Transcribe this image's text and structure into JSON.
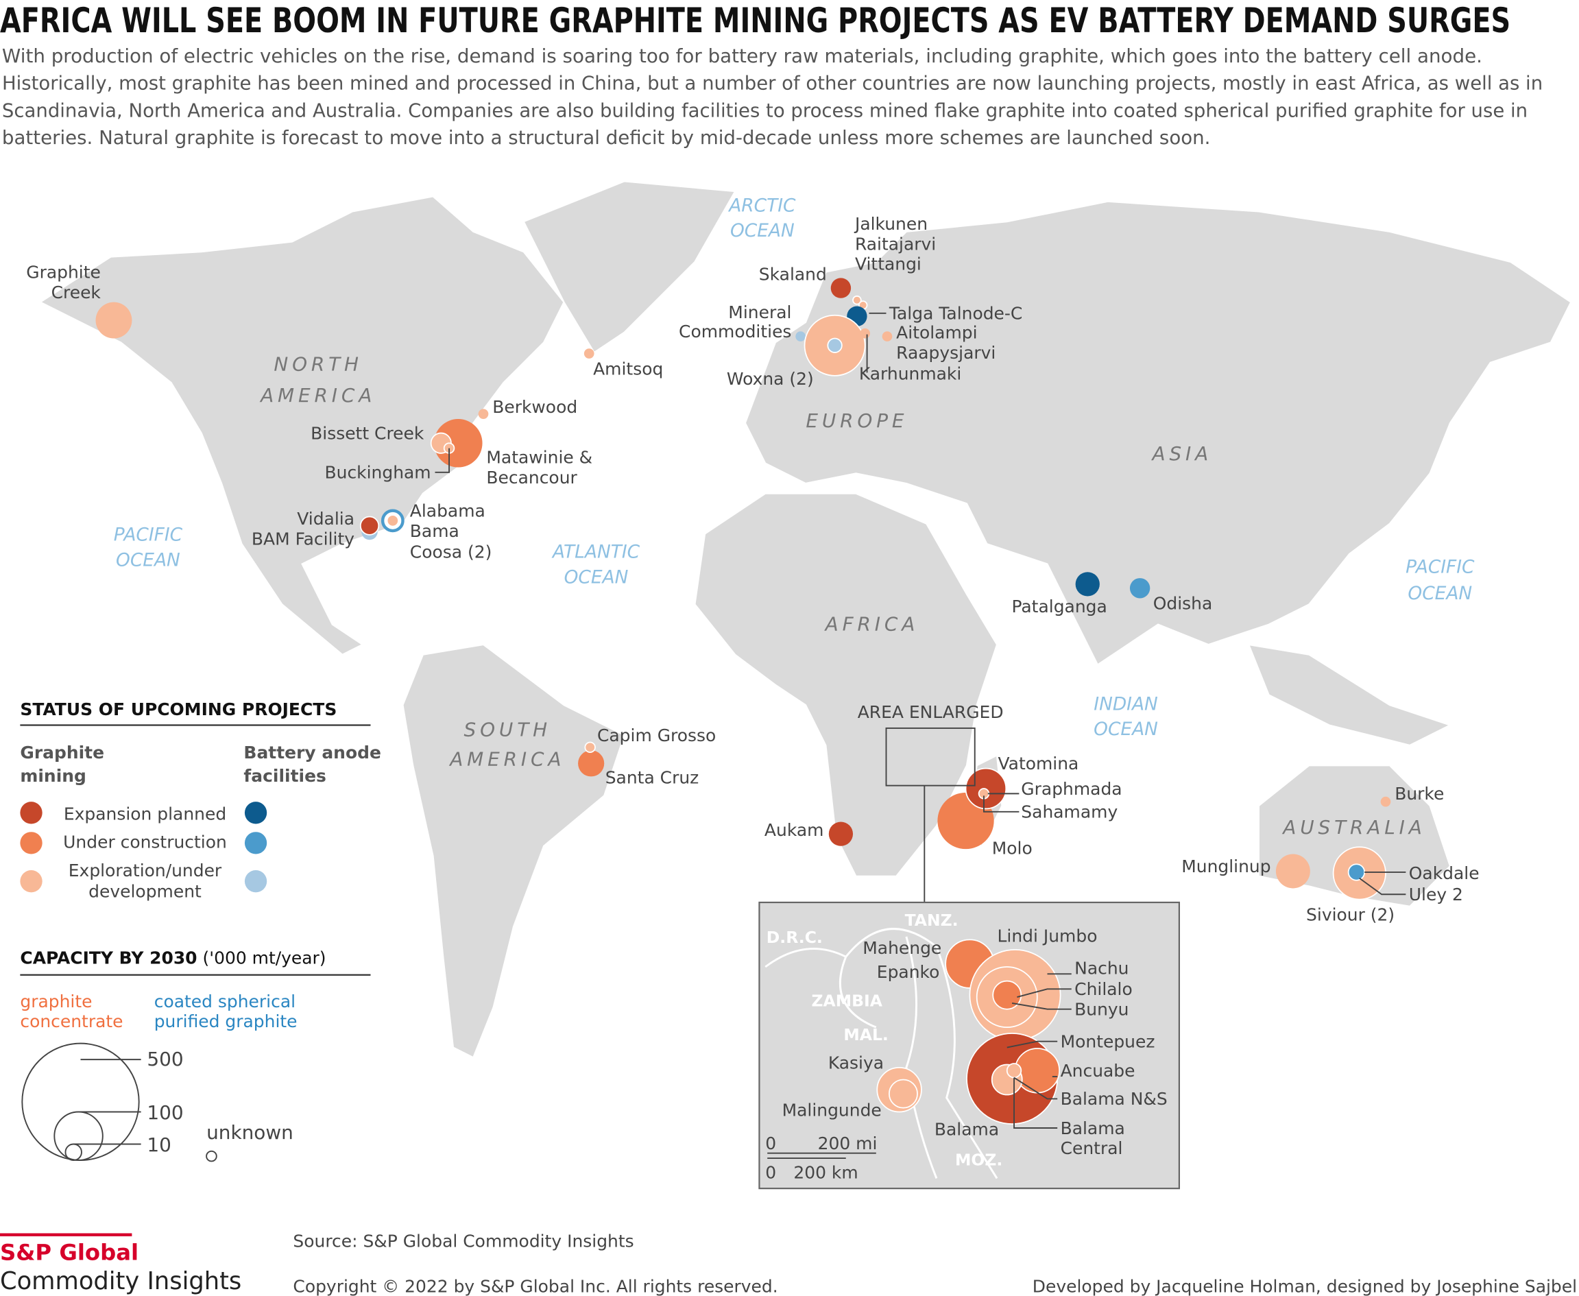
{
  "header": {
    "title": "AFRICA WILL SEE BOOM IN FUTURE GRAPHITE MINING PROJECTS AS EV BATTERY DEMAND SURGES",
    "description": [
      "With production of electric vehicles on the rise, demand is soaring too for battery raw materials, including graphite, which goes into the battery cell anode.",
      "Historically, most graphite has been mined and processed in China, but a number of other countries are now launching projects, mostly in east Africa, as well as in",
      "Scandinavia, North America and Australia. Companies are also building facilities to process mined flake graphite into coated spherical purified graphite for use in",
      "batteries. Natural graphite is forecast to move into a structural deficit by mid-decade unless more schemes are launched soon."
    ]
  },
  "oceans": [
    [
      "ARCTIC",
      "OCEAN"
    ],
    [
      "PACIFIC",
      "OCEAN"
    ],
    [
      "ATLANTIC",
      "OCEAN"
    ],
    [
      "INDIAN",
      "OCEAN"
    ],
    [
      "PACIFIC",
      "OCEAN"
    ]
  ],
  "continents": [
    [
      "NORTH",
      "AMERICA"
    ],
    [
      "EUROPE"
    ],
    [
      "ASIA"
    ],
    [
      "AFRICA"
    ],
    [
      "SOUTH",
      "AMERICA"
    ],
    [
      "AUSTRALIA"
    ]
  ],
  "projects": [
    [
      "Graphite",
      "Creek"
    ],
    [
      "Amitsoq"
    ],
    [
      "Skaland"
    ],
    [
      "Jalkunen"
    ],
    [
      "Raitajarvi"
    ],
    [
      "Vittangi"
    ],
    [
      "Talga Talnode-C"
    ],
    [
      "Mineral",
      "Commodities"
    ],
    [
      "Woxna (2)"
    ],
    [
      "Aitolampi"
    ],
    [
      "Raapysjarvi"
    ],
    [
      "Karhunmaki"
    ],
    [
      "Berkwood"
    ],
    [
      "Bissett Creek"
    ],
    [
      "Matawinie &",
      "Becancour"
    ],
    [
      "Buckingham"
    ],
    [
      "Vidalia"
    ],
    [
      "BAM Facility"
    ],
    [
      "Alabama"
    ],
    [
      "Bama"
    ],
    [
      "Coosa (2)"
    ],
    [
      "Patalganga"
    ],
    [
      "Odisha"
    ],
    [
      "Capim Grosso"
    ],
    [
      "Santa Cruz"
    ],
    [
      "Aukam"
    ],
    [
      "Vatomina"
    ],
    [
      "Graphmada"
    ],
    [
      "Sahamamy"
    ],
    [
      "Molo"
    ],
    [
      "Burke"
    ],
    [
      "Munglinup"
    ],
    [
      "Siviour (2)"
    ],
    [
      "Oakdale"
    ],
    [
      "Uley 2"
    ]
  ],
  "inset": {
    "title": "AREA ENLARGED",
    "regions": [
      "D.R.C.",
      "TANZ.",
      "ZAMBIA",
      "MAL.",
      "MOZ."
    ],
    "projects": [
      [
        "Lindi Jumbo"
      ],
      [
        "Mahenge"
      ],
      [
        "Epanko"
      ],
      [
        "Nachu"
      ],
      [
        "Chilalo"
      ],
      [
        "Bunyu"
      ],
      [
        "Montepuez"
      ],
      [
        "Ancuabe"
      ],
      [
        "Balama N&S"
      ],
      [
        "Balama",
        "Central"
      ],
      [
        "Balama"
      ],
      [
        "Kasiya"
      ],
      [
        "Malingunde"
      ]
    ],
    "scale": [
      "0",
      "200 mi",
      "0",
      "200 km"
    ]
  },
  "legend": {
    "status_title": "STATUS OF UPCOMING PROJECTS",
    "columns": [
      [
        "Graphite",
        "mining"
      ],
      [
        "Battery anode",
        "facilities"
      ]
    ],
    "statuses": [
      [
        "Expansion planned"
      ],
      [
        "Under construction"
      ],
      [
        "Exploration/under",
        "development"
      ]
    ],
    "capacity_title": "CAPACITY BY 2030",
    "capacity_unit": " ('000 mt/year)",
    "kinds": [
      [
        "graphite",
        "concentrate"
      ],
      [
        "coated spherical",
        "purified graphite"
      ]
    ],
    "sizes": [
      500,
      100,
      10
    ],
    "unknown": "unknown"
  },
  "footer": {
    "logo": [
      "S&P Global",
      "Commodity Insights"
    ],
    "source": "Source: S&P Global Commodity Insights",
    "copyright": "Copyright © 2022 by S&P Global Inc. All rights reserved.",
    "credits": "Developed by Jacqueline Holman,  designed by Josephine Sajbel"
  }
}
